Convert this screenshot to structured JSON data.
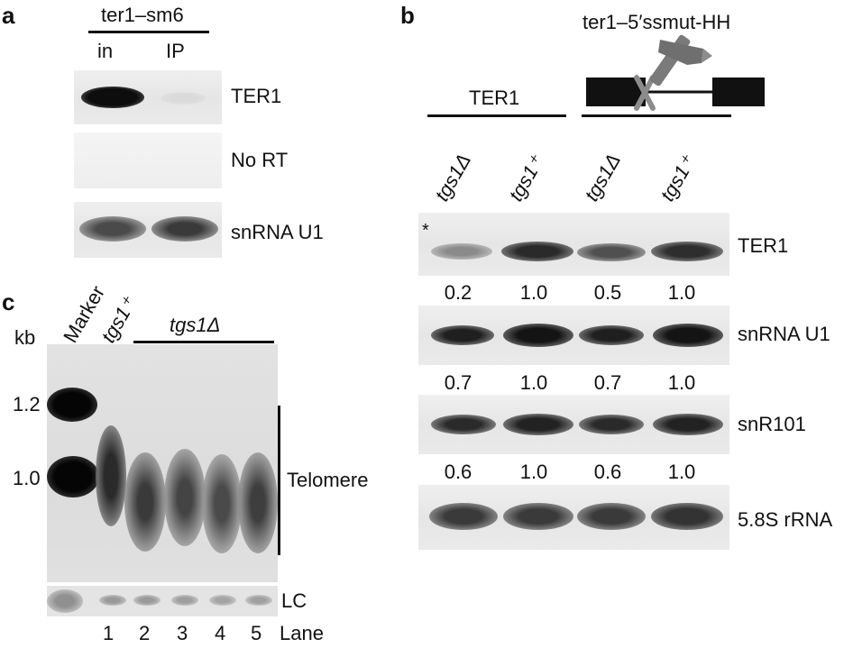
{
  "panel_a": {
    "label": "a",
    "header": "ter1–sm6",
    "col_in": "in",
    "col_ip": "IP",
    "rows": [
      "TER1",
      "No RT",
      "snRNA U1"
    ]
  },
  "panel_b": {
    "label": "b",
    "construct_label": "ter1–5′ssmut-HH",
    "group_left": "TER1",
    "lanes": [
      "tgs1Δ",
      "tgs1⁺",
      "tgs1Δ",
      "tgs1⁺"
    ],
    "asterisk": "*",
    "blots": [
      "TER1",
      "snRNA U1",
      "snR101",
      "5.8S rRNA"
    ],
    "values_ter1": [
      "0.2",
      "1.0",
      "0.5",
      "1.0"
    ],
    "values_u1": [
      "0.7",
      "1.0",
      "0.7",
      "1.0"
    ],
    "values_snr101": [
      "0.6",
      "1.0",
      "0.6",
      "1.0"
    ]
  },
  "panel_c": {
    "label": "c",
    "unit": "kb",
    "lane_marker": "Marker",
    "lane_wt": "tgs1⁺",
    "group_mut": "tgs1Δ",
    "size_12": "1.2",
    "size_10": "1.0",
    "telomere": "Telomere",
    "lc": "LC",
    "lane_numbers": [
      "1",
      "2",
      "3",
      "4",
      "5"
    ],
    "lane_word": "Lane"
  },
  "colors": {
    "ink": "#111111",
    "band_dark": "#1a1a1a",
    "hammer": "#777777",
    "cross": "#8c8c8c"
  }
}
